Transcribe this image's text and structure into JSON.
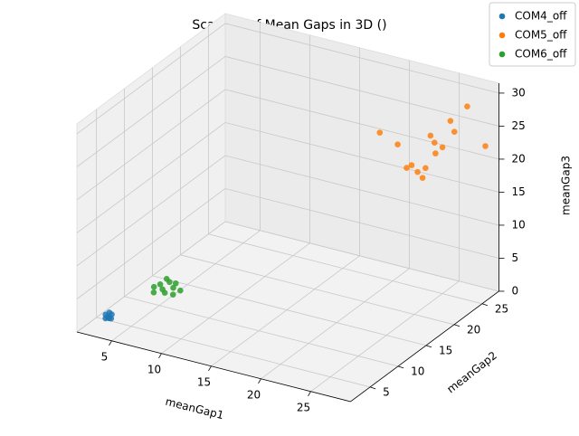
{
  "chart_data": {
    "type": "scatter3d",
    "title": "Scatters of Mean Gaps in 3D ()",
    "x_label": "meanGap1",
    "y_label": "meanGap2",
    "z_label": "meanGap3",
    "xlim": [
      1.5,
      29
    ],
    "ylim": [
      1.5,
      28
    ],
    "zlim": [
      0,
      31.5
    ],
    "xticks": [
      5,
      10,
      15,
      20,
      25
    ],
    "yticks": [
      5,
      10,
      15,
      20,
      25
    ],
    "zticks": [
      0,
      5,
      10,
      15,
      20,
      25,
      30
    ],
    "grid": true,
    "legend_position": "upper right",
    "series": [
      {
        "name": "COM4_off",
        "color": "#1f77b4",
        "x": [
          3,
          3.2,
          2.8,
          3.1,
          2.9,
          3.3,
          3,
          2.7
        ],
        "y": [
          4.5,
          4.7,
          4.3,
          4.2,
          4.8,
          4.4,
          4.6,
          4.5
        ],
        "z": [
          1,
          1.3,
          0.8,
          1.1,
          1.4,
          0.9,
          0.7,
          1.2
        ]
      },
      {
        "name": "COM5_off",
        "color": "#ff7f0e",
        "x": [
          20.4,
          22.2,
          25.5,
          25.9,
          26,
          24.7,
          24.2,
          23.1,
          23.6,
          25,
          26.7,
          27.5,
          27.9,
          27.5,
          28.2
        ],
        "y": [
          22,
          22,
          22,
          22,
          22,
          22,
          22,
          22,
          22,
          22,
          22,
          22,
          22,
          25,
          27
        ],
        "z": [
          24.5,
          23.4,
          26,
          25.1,
          23.5,
          19.3,
          20,
          20.2,
          20.8,
          20.9,
          24.7,
          29,
          27.5,
          29.3,
          22.3
        ]
      },
      {
        "name": "COM6_off",
        "color": "#2ca02c",
        "x": [
          5.6,
          5.2,
          6,
          6.4,
          5,
          5.8,
          6.6,
          4.8,
          6.2,
          7,
          5.4
        ],
        "y": [
          9.5,
          9.8,
          9.2,
          10,
          9,
          10.4,
          9.6,
          9.4,
          10.8,
          10.2,
          10.6
        ],
        "z": [
          3,
          3.4,
          2.8,
          3.2,
          2.6,
          3.6,
          2.5,
          3.1,
          3.3,
          2.9,
          3.8
        ]
      }
    ]
  }
}
